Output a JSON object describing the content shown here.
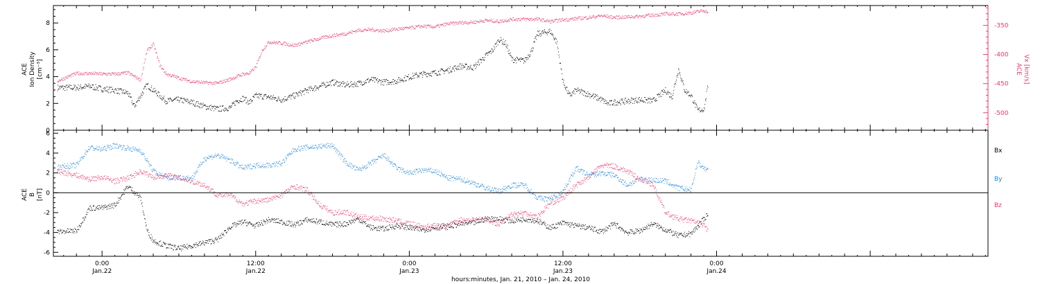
{
  "colors": {
    "background": "#ffffff",
    "axis": "#000000",
    "density": "#000000",
    "vx": "#e8396a",
    "bx": "#000000",
    "by": "#1f86e0",
    "bz": "#e8396a"
  },
  "xaxis": {
    "label": "hours:minutes, Jan. 21, 2010 – Jan. 24, 2010",
    "range_hours": [
      -3.8,
      69.2
    ],
    "ticks": [
      {
        "hour": 0,
        "time": "0:00",
        "date": "Jan.22"
      },
      {
        "hour": 12,
        "time": "12:00",
        "date": "Jan.22"
      },
      {
        "hour": 24,
        "time": "0:00",
        "date": "Jan.23"
      },
      {
        "hour": 36,
        "time": "12:00",
        "date": "Jan.23"
      },
      {
        "hour": 48,
        "time": "0:00",
        "date": "Jan.24"
      }
    ]
  },
  "chart_data": [
    {
      "type": "scatter",
      "panel": "top",
      "ylabel_left": [
        "ACE",
        "Ion Density",
        "[cm⁻³]"
      ],
      "ylim_left": [
        0,
        9.3
      ],
      "yticks_left": [
        "0",
        "2",
        "4",
        "6",
        "8"
      ],
      "ylabel_right": [
        "ACE",
        "Vx [km/s]"
      ],
      "ylim_right": [
        -530,
        -316
      ],
      "yticks_right": [
        "-350",
        "-400",
        "-450",
        "-500"
      ],
      "series": [
        {
          "key": "density",
          "axis": "left",
          "x": [
            -3.5,
            -2,
            -1,
            0,
            1,
            2,
            2.5,
            3,
            3.5,
            4,
            4.5,
            5,
            6,
            7,
            8,
            9,
            10,
            10.5,
            11,
            11.5,
            12,
            13,
            14,
            15,
            16,
            17,
            18,
            19,
            20,
            21,
            22,
            23,
            24,
            25,
            26,
            27,
            28,
            29,
            30,
            30.5,
            31,
            31.5,
            32,
            33,
            33.5,
            34,
            35,
            35.5,
            36,
            36.5,
            37,
            38,
            39,
            39.5,
            40,
            41,
            42,
            43,
            44,
            44.5,
            45,
            45.5,
            46,
            46.5,
            47,
            47.3
          ],
          "y": [
            3.2,
            3.2,
            3.3,
            3.1,
            3.0,
            2.8,
            1.8,
            2.6,
            3.4,
            3.0,
            2.6,
            2.2,
            2.3,
            2.1,
            1.8,
            1.6,
            1.7,
            2.2,
            2.4,
            2.1,
            2.6,
            2.5,
            2.3,
            2.6,
            3.0,
            3.3,
            3.6,
            3.4,
            3.5,
            3.8,
            3.6,
            3.7,
            4.0,
            4.2,
            4.3,
            4.5,
            4.8,
            4.7,
            5.6,
            6.0,
            6.8,
            6.5,
            5.3,
            5.2,
            5.9,
            7.2,
            7.4,
            6.6,
            3.6,
            2.6,
            3.0,
            2.7,
            2.3,
            2.0,
            2.1,
            2.2,
            2.3,
            2.2,
            3.0,
            2.5,
            4.6,
            3.0,
            2.6,
            1.5,
            1.6,
            3.3
          ]
        },
        {
          "key": "vx",
          "axis": "right",
          "x": [
            -3.5,
            -2,
            -1,
            0,
            1,
            2,
            3,
            3.5,
            4,
            4.5,
            5,
            6,
            7,
            8,
            9,
            10,
            11,
            11.5,
            12,
            12.5,
            13,
            14,
            15,
            16,
            17,
            18,
            19,
            20,
            21,
            22,
            23,
            24,
            25,
            26,
            27,
            28,
            29,
            30,
            31,
            32,
            33,
            34,
            35,
            36,
            37,
            38,
            39,
            40,
            41,
            42,
            43,
            44,
            45,
            46,
            47,
            47.3
          ],
          "y": [
            -445,
            -432,
            -432,
            -433,
            -433,
            -431,
            -443,
            -393,
            -382,
            -418,
            -433,
            -440,
            -446,
            -448,
            -449,
            -442,
            -433,
            -432,
            -421,
            -392,
            -378,
            -380,
            -384,
            -378,
            -372,
            -367,
            -364,
            -358,
            -357,
            -359,
            -356,
            -354,
            -351,
            -352,
            -347,
            -345,
            -344,
            -341,
            -343,
            -339,
            -339,
            -339,
            -343,
            -340,
            -338,
            -336,
            -333,
            -336,
            -335,
            -334,
            -332,
            -330,
            -330,
            -328,
            -324,
            -327
          ]
        }
      ]
    },
    {
      "type": "scatter",
      "panel": "bottom",
      "ylabel": [
        "ACE",
        "B",
        "[nT]"
      ],
      "ylim": [
        -6.4,
        6.3
      ],
      "yticks": [
        "-6",
        "-4",
        "-2",
        "0",
        "2",
        "4",
        "6"
      ],
      "zero_line": true,
      "legend": [
        "Bx",
        "By",
        "Bz"
      ],
      "legend_placement": "right",
      "series": [
        {
          "name": "Bx",
          "x": [
            -3.5,
            -2,
            -1,
            0,
            1,
            2,
            3,
            3.5,
            4,
            5,
            6,
            7,
            8,
            9,
            10,
            11,
            12,
            13,
            14,
            15,
            16,
            17,
            18,
            19,
            20,
            21,
            22,
            23,
            24,
            25,
            26,
            27,
            28,
            29,
            30,
            31,
            32,
            33,
            34,
            35,
            36,
            37,
            38,
            39,
            40,
            41,
            42,
            43,
            44,
            45,
            46,
            47,
            47.3
          ],
          "y": [
            -3.9,
            -3.8,
            -1.5,
            -1.5,
            -1.2,
            0.7,
            -0.5,
            -3.8,
            -4.8,
            -5.3,
            -5.6,
            -5.3,
            -5.0,
            -4.7,
            -3.4,
            -2.9,
            -3.3,
            -2.7,
            -2.9,
            -3.2,
            -2.7,
            -2.9,
            -3.2,
            -3.1,
            -2.6,
            -3.5,
            -3.6,
            -3.3,
            -3.5,
            -3.7,
            -3.5,
            -3.4,
            -3.1,
            -3.0,
            -2.6,
            -2.6,
            -2.8,
            -2.6,
            -2.8,
            -3.5,
            -3.0,
            -3.3,
            -3.5,
            -3.9,
            -3.1,
            -4.0,
            -3.8,
            -3.1,
            -3.7,
            -4.3,
            -4.1,
            -2.6,
            -2.1
          ]
        },
        {
          "name": "By",
          "x": [
            -3.5,
            -2,
            -1,
            0,
            1,
            2,
            3,
            4,
            5,
            6,
            7,
            8,
            9,
            10,
            11,
            12,
            13,
            14,
            15,
            16,
            17,
            18,
            19,
            20,
            21,
            22,
            23,
            24,
            25,
            26,
            27,
            28,
            29,
            30,
            31,
            32,
            33,
            34,
            35,
            36,
            37,
            38,
            39,
            40,
            41,
            42,
            43,
            44,
            45,
            46,
            46.5,
            47,
            47.3
          ],
          "y": [
            2.6,
            2.8,
            4.6,
            4.4,
            4.8,
            4.5,
            4.3,
            2.2,
            1.5,
            1.6,
            1.5,
            3.5,
            3.8,
            3.3,
            2.5,
            2.8,
            2.8,
            3.0,
            4.4,
            4.6,
            4.7,
            4.8,
            3.1,
            2.3,
            3.0,
            3.8,
            2.5,
            2.0,
            2.3,
            2.2,
            1.5,
            1.4,
            1.0,
            0.5,
            0.2,
            0.8,
            0.8,
            -0.5,
            -0.6,
            0.2,
            2.5,
            1.8,
            2.0,
            1.8,
            0.8,
            1.4,
            1.3,
            1.2,
            0.5,
            0.3,
            3.1,
            2.5,
            2.3
          ]
        },
        {
          "name": "Bz",
          "x": [
            -3.5,
            -2,
            -1,
            0,
            1,
            2,
            3,
            4,
            5,
            6,
            7,
            8,
            9,
            10,
            11,
            12,
            13,
            14,
            15,
            16,
            17,
            18,
            19,
            20,
            21,
            22,
            23,
            24,
            25,
            26,
            27,
            28,
            29,
            30,
            31,
            32,
            33,
            34,
            35,
            36,
            37,
            38,
            39,
            40,
            41,
            42,
            43,
            44,
            45,
            46,
            47,
            47.3
          ],
          "y": [
            2.2,
            1.8,
            1.4,
            1.6,
            1.2,
            1.5,
            2.2,
            1.6,
            1.8,
            1.5,
            1.2,
            0.8,
            -0.2,
            -0.2,
            -1.1,
            -0.8,
            -0.7,
            -0.2,
            0.7,
            0.3,
            -1.2,
            -2.0,
            -1.9,
            -2.4,
            -2.5,
            -2.6,
            -2.8,
            -3.1,
            -3.4,
            -3.3,
            -3.3,
            -2.7,
            -2.7,
            -2.6,
            -3.2,
            -2.1,
            -2.0,
            -2.4,
            -1.0,
            -0.5,
            0.8,
            1.6,
            2.8,
            2.7,
            2.2,
            1.4,
            0.9,
            -2.0,
            -2.6,
            -2.8,
            -3.2,
            -3.8
          ]
        }
      ]
    }
  ]
}
